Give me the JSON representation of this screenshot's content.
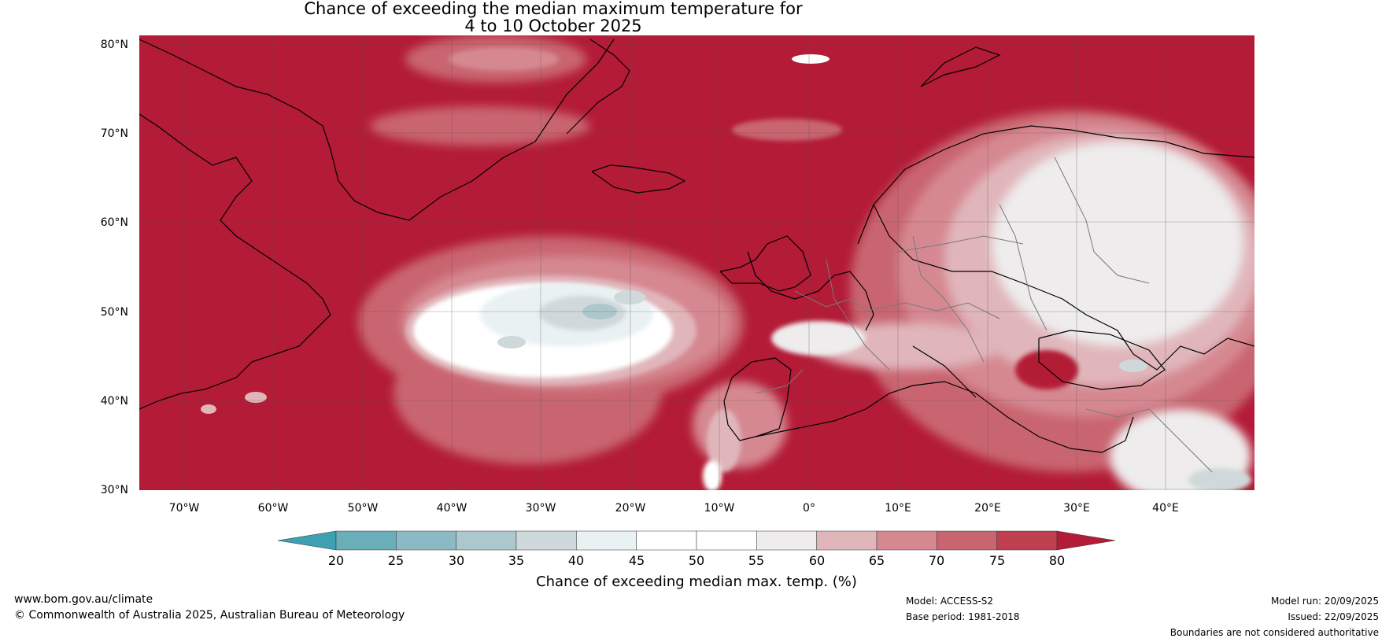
{
  "title": {
    "line1": "Chance of exceeding the median maximum temperature for",
    "line2": "4 to 10 October 2025"
  },
  "map": {
    "lon_ticks": [
      "70°W",
      "60°W",
      "50°W",
      "40°W",
      "30°W",
      "20°W",
      "10°W",
      "0°",
      "10°E",
      "20°E",
      "30°E",
      "40°E"
    ],
    "lat_ticks": [
      "80°N",
      "70°N",
      "60°N",
      "50°N",
      "40°N",
      "30°N"
    ],
    "extent": {
      "lon": [
        -75,
        50
      ],
      "lat": [
        30,
        81
      ]
    },
    "background_category": "above 80%"
  },
  "colorbar": {
    "ticks": [
      "20",
      "25",
      "30",
      "35",
      "40",
      "45",
      "50",
      "55",
      "60",
      "65",
      "70",
      "75",
      "80"
    ],
    "colors": [
      "#3ea0b1",
      "#6aaeba",
      "#8cbac4",
      "#adc8cc",
      "#cfd8da",
      "#e9f1f3",
      "#ffffff",
      "#ffffff",
      "#eeecec",
      "#e0b6bb",
      "#d68891",
      "#c96570",
      "#bf3f50",
      "#b31b36"
    ],
    "label": "Chance of exceeding median max. temp. (%)"
  },
  "footer": {
    "website": "www.bom.gov.au/climate",
    "copyright": "© Commonwealth of Australia 2025, Australian Bureau of Meteorology",
    "model": "Model: ACCESS-S2",
    "base_period": "Base period: 1981-2018",
    "model_run": "Model run: 20/09/2025",
    "issued": "Issued: 22/09/2025",
    "disclaimer": "Boundaries are not considered authoritative"
  }
}
